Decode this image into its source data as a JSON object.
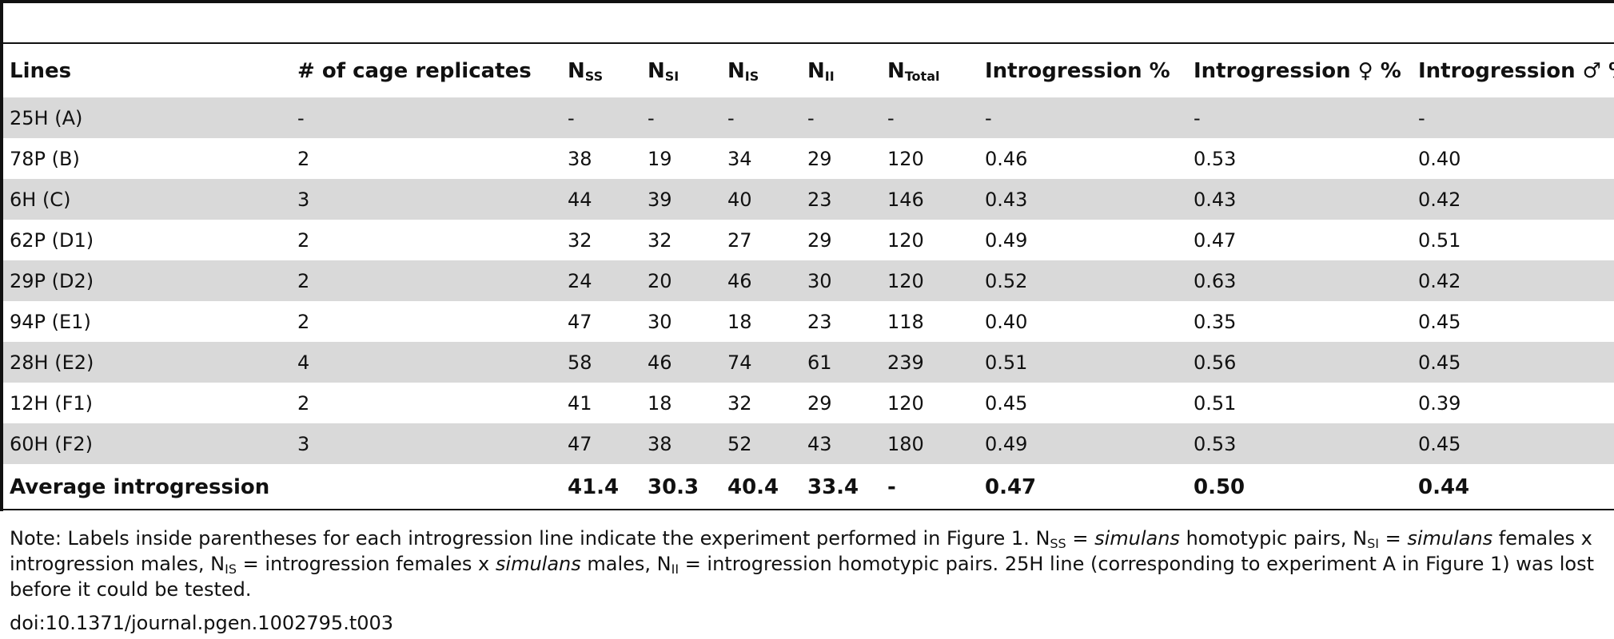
{
  "table": {
    "headers": {
      "lines": "Lines",
      "replicates": "# of cage replicates",
      "nss": {
        "base": "N",
        "sub": "SS"
      },
      "nsi": {
        "base": "N",
        "sub": "SI"
      },
      "nis": {
        "base": "N",
        "sub": "IS"
      },
      "nii": {
        "base": "N",
        "sub": "II"
      },
      "ntotal": {
        "base": "N",
        "sub": "Total"
      },
      "introgression": "Introgression %",
      "introgression_female": "Introgression ♀ %",
      "introgression_male": "Introgression ♂ %"
    },
    "rows": [
      [
        "25H (A)",
        "-",
        "-",
        "-",
        "-",
        "-",
        "-",
        "-",
        "-",
        "-"
      ],
      [
        "78P (B)",
        "2",
        "38",
        "19",
        "34",
        "29",
        "120",
        "0.46",
        "0.53",
        "0.40"
      ],
      [
        "6H (C)",
        "3",
        "44",
        "39",
        "40",
        "23",
        "146",
        "0.43",
        "0.43",
        "0.42"
      ],
      [
        "62P (D1)",
        "2",
        "32",
        "32",
        "27",
        "29",
        "120",
        "0.49",
        "0.47",
        "0.51"
      ],
      [
        "29P (D2)",
        "2",
        "24",
        "20",
        "46",
        "30",
        "120",
        "0.52",
        "0.63",
        "0.42"
      ],
      [
        "94P (E1)",
        "2",
        "47",
        "30",
        "18",
        "23",
        "118",
        "0.40",
        "0.35",
        "0.45"
      ],
      [
        "28H (E2)",
        "4",
        "58",
        "46",
        "74",
        "61",
        "239",
        "0.51",
        "0.56",
        "0.45"
      ],
      [
        "12H (F1)",
        "2",
        "41",
        "18",
        "32",
        "29",
        "120",
        "0.45",
        "0.51",
        "0.39"
      ],
      [
        "60H (F2)",
        "3",
        "47",
        "38",
        "52",
        "43",
        "180",
        "0.49",
        "0.53",
        "0.45"
      ]
    ],
    "average": {
      "label": "Average introgression",
      "nss": "41.4",
      "nsi": "30.3",
      "nis": "40.4",
      "nii": "33.4",
      "ntotal": "-",
      "introgression": "0.47",
      "introgression_female": "0.50",
      "introgression_male": "0.44"
    }
  },
  "note": {
    "t1": "Note: Labels inside parentheses for each introgression line indicate the experiment performed in Figure 1. N",
    "s1": "SS",
    "t2": " = ",
    "i1": "simulans",
    "t3": " homotypic pairs, N",
    "s2": "SI",
    "t4": " = ",
    "i2": "simulans",
    "t5": " females x introgression males, N",
    "s3": "IS",
    "t6": " = introgression females x ",
    "i3": "simulans",
    "t7": " males, N",
    "s4": "II",
    "t8": " = introgression homotypic pairs. 25H line (corresponding to experiment A in Figure 1) was lost before it could be tested."
  },
  "doi": "doi:10.1371/journal.pgen.1002795.t003"
}
